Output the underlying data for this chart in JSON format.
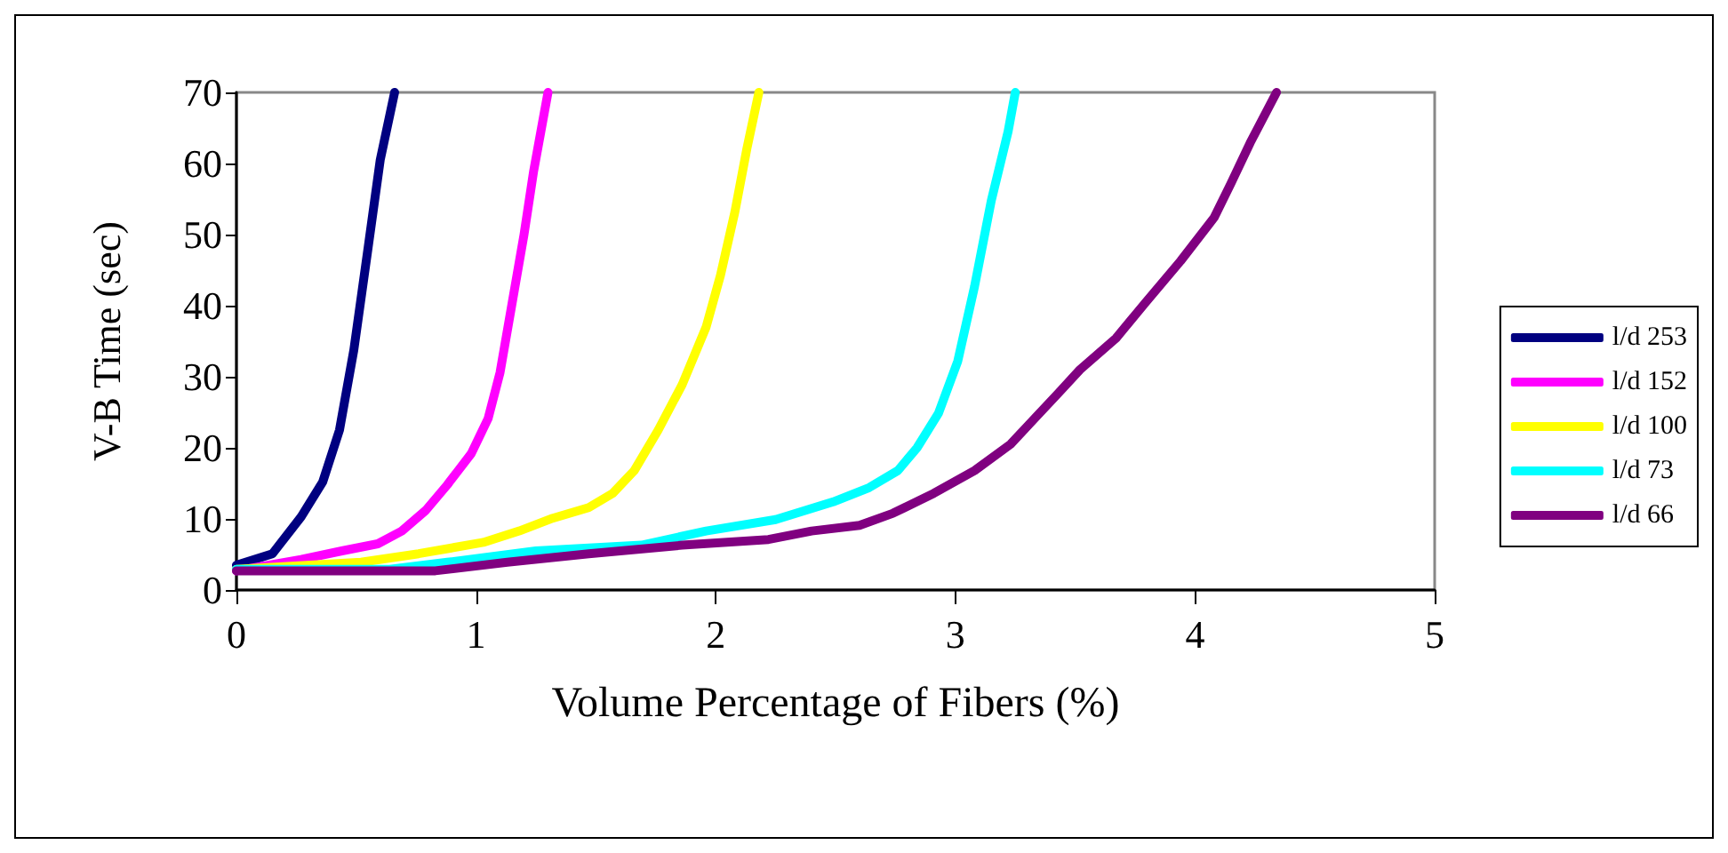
{
  "chart_data": {
    "type": "line",
    "xlabel": "Volume Percentage of Fibers (%)",
    "ylabel": "V-B Time (sec)",
    "xlim": [
      0,
      5
    ],
    "xticks": [
      0,
      1,
      2,
      3,
      4,
      5
    ],
    "ylim": [
      0,
      70
    ],
    "yticks": [
      0,
      10,
      20,
      30,
      40,
      50,
      60,
      70
    ],
    "grid": false,
    "legend": "right",
    "marker": "none",
    "line_style": "solid",
    "series": [
      {
        "name": "l/d 253",
        "color": "#000080",
        "x": [
          0,
          0.15,
          0.27,
          0.36,
          0.43,
          0.49,
          0.55,
          0.6,
          0.66
        ],
        "values": [
          3.5,
          5.1,
          10.3,
          15.2,
          22.5,
          33.8,
          48.3,
          60.5,
          70
        ]
      },
      {
        "name": "l/d 152",
        "color": "#ff00ff",
        "x": [
          0,
          0.27,
          0.44,
          0.59,
          0.69,
          0.79,
          0.88,
          0.98,
          1.05,
          1.1,
          1.15,
          1.2,
          1.24,
          1.3
        ],
        "values": [
          2.7,
          4.3,
          5.5,
          6.5,
          8.3,
          11.2,
          14.8,
          19.2,
          24.1,
          30.6,
          40.3,
          50,
          58.9,
          70
        ]
      },
      {
        "name": "l/d 100",
        "color": "#ffff00",
        "x": [
          0,
          0.52,
          0.76,
          1.03,
          1.18,
          1.32,
          1.47,
          1.57,
          1.66,
          1.76,
          1.86,
          1.96,
          2.02,
          2.08,
          2.13,
          2.18
        ],
        "values": [
          2.9,
          3.9,
          5.1,
          6.7,
          8.3,
          10.1,
          11.6,
          13.6,
          16.8,
          22.5,
          28.9,
          37,
          44.3,
          53.2,
          62.1,
          70
        ]
      },
      {
        "name": "l/d 73",
        "color": "#00ffff",
        "x": [
          0,
          0.64,
          0.88,
          1.25,
          1.69,
          1.96,
          2.25,
          2.49,
          2.64,
          2.76,
          2.84,
          2.93,
          3.01,
          3.08,
          3.15,
          3.22,
          3.25
        ],
        "values": [
          2.9,
          2.9,
          3.9,
          5.5,
          6.3,
          8.3,
          9.9,
          12.4,
          14.4,
          16.8,
          20,
          24.9,
          32.2,
          42.7,
          54.8,
          64.5,
          70
        ]
      },
      {
        "name": "l/d 66",
        "color": "#800080",
        "x": [
          0,
          0.83,
          1.13,
          1.47,
          1.86,
          2.22,
          2.4,
          2.6,
          2.74,
          2.91,
          3.08,
          3.23,
          3.33,
          3.43,
          3.52,
          3.67,
          3.79,
          3.94,
          4.08,
          4.15,
          4.23,
          4.34
        ],
        "values": [
          2.7,
          2.7,
          3.9,
          5.1,
          6.3,
          7.1,
          8.3,
          9.1,
          10.8,
          13.6,
          16.8,
          20.5,
          24.1,
          27.7,
          31,
          35.4,
          40.3,
          46.3,
          52.4,
          57.2,
          62.9,
          70
        ]
      }
    ]
  }
}
